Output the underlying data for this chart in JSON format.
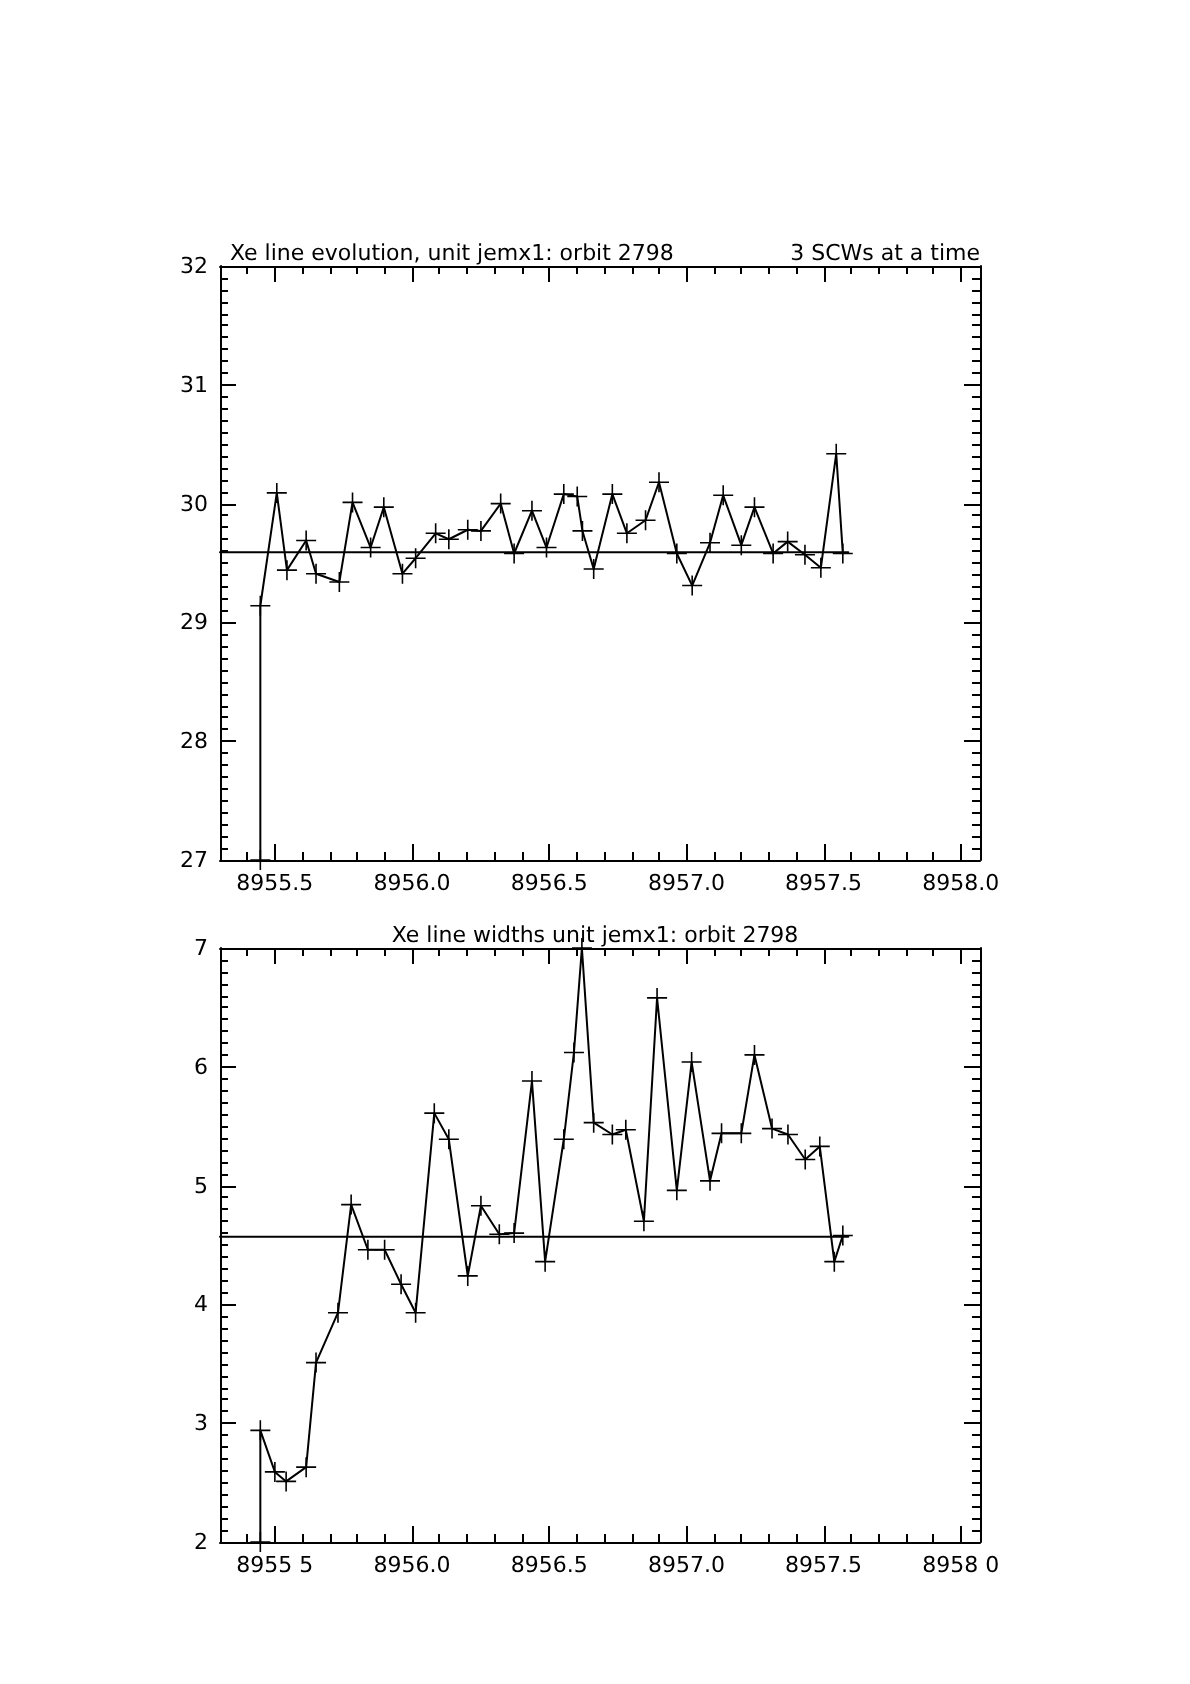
{
  "chart_data": [
    {
      "type": "line",
      "title": "Xe line evolution, unit jemx1: orbit 2798",
      "subtitle": "3 SCWs at a time",
      "xlim": [
        8955.3,
        8958.07
      ],
      "xticks": [
        {
          "value": 8955.5,
          "label": "8955.5"
        },
        {
          "value": 8956,
          "label": "8956.0"
        },
        {
          "value": 8956.5,
          "label": "8956.5"
        },
        {
          "value": 8957,
          "label": "8957.0"
        },
        {
          "value": 8957.5,
          "label": "8957.5"
        },
        {
          "value": 8958,
          "label": "8958.0"
        }
      ],
      "ylim": [
        27,
        32
      ],
      "yticks": [
        27,
        28,
        29,
        30,
        31,
        32
      ],
      "series": [
        {
          "color": "#000000",
          "marker": "cross",
          "line_style": "solid",
          "x": [
            8955.447,
            8955.447,
            8955.507,
            8955.544,
            8955.614,
            8955.65,
            8955.735,
            8955.783,
            8955.849,
            8955.897,
            8955.965,
            8956.013,
            8956.086,
            8956.134,
            8956.203,
            8956.251,
            8956.323,
            8956.372,
            8956.437,
            8956.49,
            8956.553,
            8956.602,
            8956.621,
            8956.662,
            8956.73,
            8956.783,
            8956.851,
            8956.9,
            8956.965,
            8957.021,
            8957.086,
            8957.134,
            8957.2,
            8957.248,
            8957.316,
            8957.369,
            8957.432,
            8957.49,
            8957.546,
            8957.57
          ],
          "values": [
            27,
            29.14,
            30.09,
            29.44,
            29.69,
            29.41,
            29.34,
            30.01,
            29.63,
            29.97,
            29.41,
            29.54,
            29.75,
            29.7,
            29.78,
            29.77,
            30,
            29.58,
            29.94,
            29.63,
            30.08,
            30.06,
            29.77,
            29.45,
            30.08,
            29.75,
            29.86,
            30.18,
            29.58,
            29.31,
            29.67,
            30.07,
            29.65,
            29.97,
            29.58,
            29.68,
            29.57,
            29.46,
            30.42,
            29.58
          ]
        },
        {
          "color": "#000000",
          "marker": "none",
          "line_style": "solid",
          "x": [
            8955.3,
            8957.59
          ],
          "values": [
            29.59,
            29.59
          ]
        }
      ]
    },
    {
      "type": "line",
      "title": "Xe line widths unit jemx1: orbit 2798",
      "xlim": [
        8955.3,
        8958.07
      ],
      "xticks": [
        {
          "value": 8955.5,
          "label": "8955 5"
        },
        {
          "value": 8956,
          "label": "8956.0"
        },
        {
          "value": 8956.5,
          "label": "8956.5"
        },
        {
          "value": 8957,
          "label": "8957.0"
        },
        {
          "value": 8957.5,
          "label": "8957.5"
        },
        {
          "value": 8958,
          "label": "8958 0"
        }
      ],
      "ylim": [
        2,
        7
      ],
      "yticks": [
        2,
        3,
        4,
        5,
        6,
        7
      ],
      "series": [
        {
          "color": "#000000",
          "marker": "cross",
          "line_style": "solid",
          "x": [
            8955.447,
            8955.447,
            8955.5,
            8955.541,
            8955.614,
            8955.65,
            8955.73,
            8955.778,
            8955.839,
            8955.9,
            8955.96,
            8956.013,
            8956.081,
            8956.134,
            8956.203,
            8956.251,
            8956.318,
            8956.372,
            8956.437,
            8956.485,
            8956.553,
            8956.59,
            8956.619,
            8956.662,
            8956.73,
            8956.779,
            8956.845,
            8956.893,
            8956.965,
            8957.019,
            8957.086,
            8957.128,
            8957.2,
            8957.248,
            8957.312,
            8957.37,
            8957.433,
            8957.486,
            8957.539,
            8957.57
          ],
          "values": [
            2,
            2.94,
            2.59,
            2.51,
            2.63,
            3.51,
            3.93,
            4.84,
            4.46,
            4.46,
            4.17,
            3.93,
            5.61,
            5.39,
            4.24,
            4.83,
            4.59,
            4.6,
            5.88,
            4.36,
            5.39,
            6.12,
            7,
            5.53,
            5.43,
            5.47,
            4.7,
            6.58,
            4.96,
            6.04,
            5.04,
            5.44,
            5.44,
            6.1,
            5.48,
            5.43,
            5.22,
            5.33,
            4.36,
            4.58
          ]
        },
        {
          "color": "#000000",
          "marker": "none",
          "line_style": "solid",
          "x": [
            8955.3,
            8957.59
          ],
          "values": [
            4.57,
            4.57
          ]
        }
      ]
    }
  ]
}
